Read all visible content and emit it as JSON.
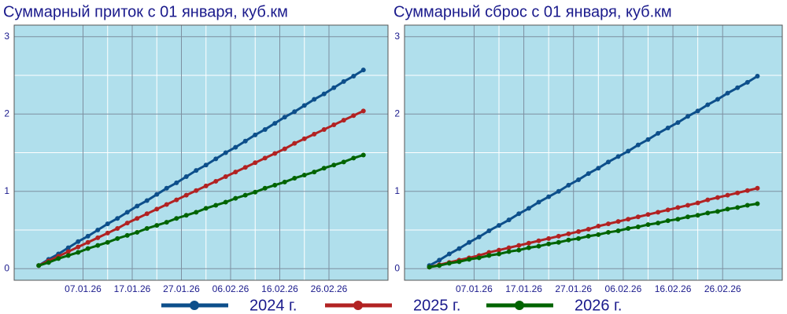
{
  "chart_data": [
    {
      "type": "line",
      "title": "Суммарный приток с 01 января, куб.км",
      "x": [
        "29.12.25",
        "31.12.25",
        "02.01.26",
        "04.01.26",
        "06.01.26",
        "08.01.26",
        "10.01.26",
        "12.01.26",
        "14.01.26",
        "16.01.26",
        "18.01.26",
        "20.01.26",
        "22.01.26",
        "24.01.26",
        "26.01.26",
        "28.01.26",
        "30.01.26",
        "01.02.26",
        "03.02.26",
        "05.02.26",
        "07.02.26",
        "09.02.26",
        "11.02.26",
        "13.02.26",
        "15.02.26",
        "17.02.26",
        "19.02.26",
        "21.02.26",
        "23.02.26",
        "25.02.26",
        "27.02.26",
        "01.03.26",
        "03.03.26",
        "05.03.26"
      ],
      "xlim": [
        "24.12.25",
        "10.03.26"
      ],
      "xticks": [
        "07.01.26",
        "17.01.26",
        "27.01.26",
        "06.02.26",
        "16.02.26",
        "26.02.26"
      ],
      "ylim": [
        -0.15,
        3.15
      ],
      "yticks": [
        0,
        1,
        2,
        3
      ],
      "grid": true,
      "series": [
        {
          "name": "2024 г.",
          "color": "#0d4f8b",
          "values": [
            0.04,
            0.12,
            0.19,
            0.27,
            0.35,
            0.42,
            0.5,
            0.58,
            0.65,
            0.73,
            0.81,
            0.88,
            0.96,
            1.04,
            1.11,
            1.19,
            1.27,
            1.34,
            1.42,
            1.5,
            1.57,
            1.65,
            1.73,
            1.8,
            1.88,
            1.96,
            2.03,
            2.11,
            2.19,
            2.26,
            2.34,
            2.42,
            2.49,
            2.57
          ]
        },
        {
          "name": "2025 г.",
          "color": "#b22222",
          "values": [
            0.04,
            0.1,
            0.16,
            0.22,
            0.28,
            0.34,
            0.4,
            0.46,
            0.52,
            0.59,
            0.65,
            0.71,
            0.77,
            0.83,
            0.89,
            0.95,
            1.01,
            1.07,
            1.13,
            1.19,
            1.25,
            1.31,
            1.37,
            1.43,
            1.49,
            1.55,
            1.62,
            1.68,
            1.74,
            1.8,
            1.86,
            1.92,
            1.98,
            2.04
          ]
        },
        {
          "name": "2026 г.",
          "color": "#006400",
          "values": [
            0.04,
            0.08,
            0.13,
            0.17,
            0.21,
            0.26,
            0.3,
            0.34,
            0.39,
            0.43,
            0.47,
            0.52,
            0.56,
            0.6,
            0.65,
            0.69,
            0.73,
            0.78,
            0.82,
            0.86,
            0.91,
            0.95,
            0.99,
            1.04,
            1.08,
            1.12,
            1.17,
            1.21,
            1.25,
            1.3,
            1.34,
            1.38,
            1.43,
            1.47
          ]
        }
      ]
    },
    {
      "type": "line",
      "title": "Суммарный сброс с 01 января, куб.км",
      "x": [
        "29.12.25",
        "31.12.25",
        "02.01.26",
        "04.01.26",
        "06.01.26",
        "08.01.26",
        "10.01.26",
        "12.01.26",
        "14.01.26",
        "16.01.26",
        "18.01.26",
        "20.01.26",
        "22.01.26",
        "24.01.26",
        "26.01.26",
        "28.01.26",
        "30.01.26",
        "01.02.26",
        "03.02.26",
        "05.02.26",
        "07.02.26",
        "09.02.26",
        "11.02.26",
        "13.02.26",
        "15.02.26",
        "17.02.26",
        "19.02.26",
        "21.02.26",
        "23.02.26",
        "25.02.26",
        "27.02.26",
        "01.03.26",
        "03.03.26",
        "05.03.26"
      ],
      "xlim": [
        "24.12.25",
        "10.03.26"
      ],
      "xticks": [
        "07.01.26",
        "17.01.26",
        "27.01.26",
        "06.02.26",
        "16.02.26",
        "26.02.26"
      ],
      "ylim": [
        -0.15,
        3.15
      ],
      "yticks": [
        0,
        1,
        2,
        3
      ],
      "grid": true,
      "series": [
        {
          "name": "2024 г.",
          "color": "#0d4f8b",
          "values": [
            0.04,
            0.11,
            0.19,
            0.26,
            0.34,
            0.41,
            0.49,
            0.56,
            0.63,
            0.71,
            0.78,
            0.86,
            0.93,
            1.0,
            1.08,
            1.15,
            1.23,
            1.3,
            1.38,
            1.45,
            1.52,
            1.6,
            1.67,
            1.75,
            1.82,
            1.89,
            1.97,
            2.04,
            2.12,
            2.19,
            2.27,
            2.34,
            2.41,
            2.49
          ]
        },
        {
          "name": "2025 г.",
          "color": "#b22222",
          "values": [
            0.02,
            0.05,
            0.08,
            0.11,
            0.14,
            0.17,
            0.21,
            0.24,
            0.27,
            0.3,
            0.33,
            0.36,
            0.39,
            0.42,
            0.45,
            0.48,
            0.51,
            0.55,
            0.58,
            0.61,
            0.64,
            0.67,
            0.7,
            0.73,
            0.76,
            0.79,
            0.82,
            0.85,
            0.89,
            0.92,
            0.95,
            0.98,
            1.01,
            1.04
          ]
        },
        {
          "name": "2026 г.",
          "color": "#006400",
          "values": [
            0.02,
            0.04,
            0.07,
            0.09,
            0.12,
            0.14,
            0.17,
            0.19,
            0.22,
            0.24,
            0.27,
            0.29,
            0.32,
            0.34,
            0.37,
            0.39,
            0.42,
            0.44,
            0.47,
            0.49,
            0.52,
            0.54,
            0.57,
            0.59,
            0.62,
            0.64,
            0.67,
            0.69,
            0.72,
            0.74,
            0.77,
            0.79,
            0.82,
            0.84
          ]
        }
      ]
    }
  ]
}
